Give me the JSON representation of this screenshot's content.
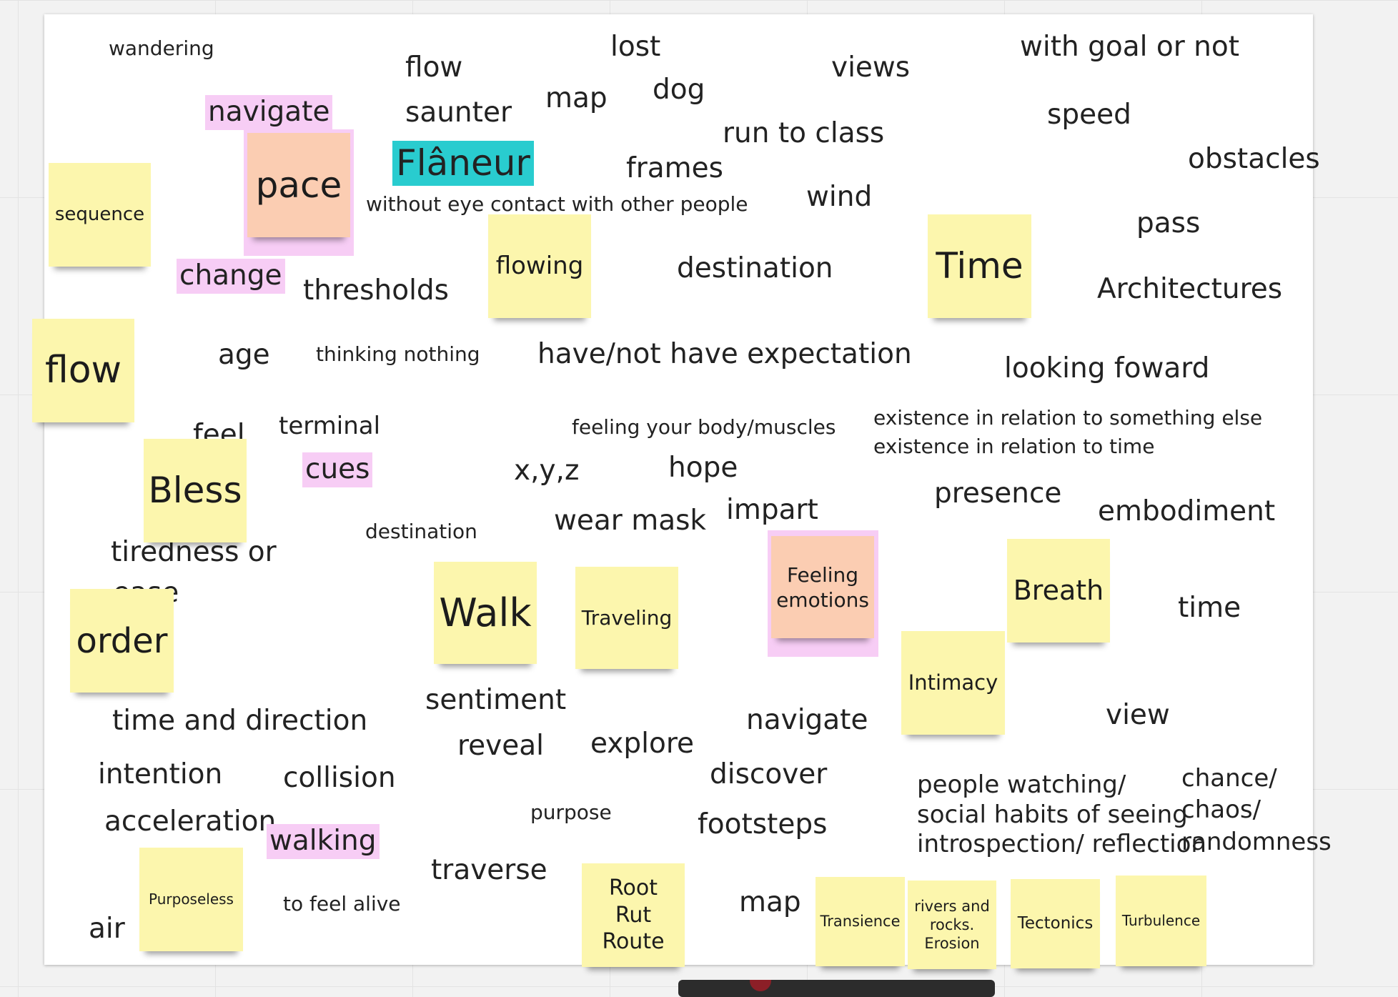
{
  "canvas": {
    "background_color": "#f2f2f2",
    "frame_color": "#ffffff",
    "sticky_yellow": "#fcf6ad",
    "sticky_salmon": "#fbcdb2",
    "highlight_pink": "#f7cdf5",
    "highlight_teal": "#29cccf"
  },
  "words": {
    "wandering": "wandering",
    "flow_top": "flow",
    "lost": "lost",
    "views": "views",
    "with_goal": "with goal or not",
    "navigate_pink": "navigate",
    "saunter": "saunter",
    "map_top": "map",
    "dog": "dog",
    "speed": "speed",
    "run_to_class": "run to class",
    "flaneur": "Flâneur",
    "frames": "frames",
    "obstacles": "obstacles",
    "without_eye_contact": "without eye contact with other people",
    "wind": "wind",
    "pass": "pass",
    "change": "change",
    "thresholds": "thresholds",
    "destination_mid": "destination",
    "architectures": "Architectures",
    "age": "age",
    "thinking_nothing": "thinking nothing",
    "expectation": "have/not have expectation",
    "looking_foward": "looking foward",
    "feel": "feel",
    "terminal": "terminal",
    "feeling_body": "feeling your body/muscles",
    "existence_something": "existence in relation to something else",
    "existence_time": "existence in relation to time",
    "cues": "cues",
    "xyz": "x,y,z",
    "hope": "hope",
    "presence": "presence",
    "destination_small": "destination",
    "wear_mask": "wear mask",
    "impart": "impart",
    "embodiment": "embodiment",
    "tiredness": "tiredness or",
    "ease": "ease",
    "time_lower": "time",
    "sentiment": "sentiment",
    "time_and_direction": "time and direction",
    "navigate_lower": "navigate",
    "view": "view",
    "reveal": "reveal",
    "explore": "explore",
    "intention": "intention",
    "collision": "collision",
    "discover": "discover",
    "people_watching": "people watching/",
    "social_habits": "social habits of seeing",
    "introspection": "introspection/ reflection",
    "chance": "chance/",
    "chaos": "chaos/",
    "randomness": "randomness",
    "purpose": "purpose",
    "acceleration": "acceleration",
    "footsteps": "footsteps",
    "walking": "walking",
    "traverse": "traverse",
    "to_feel_alive": "to feel alive",
    "map_bottom": "map",
    "air": "air"
  },
  "notes": {
    "sequence": "sequence",
    "pace": "pace",
    "flowing": "flowing",
    "time": "Time",
    "flow": "flow",
    "bless": "Bless",
    "order": "order",
    "walk": "Walk",
    "traveling": "Traveling",
    "feeling_emotions_1": "Feeling",
    "feeling_emotions_2": "emotions",
    "breath": "Breath",
    "intimacy": "Intimacy",
    "purposeless": "Purposeless",
    "root_1": "Root",
    "root_2": "Rut",
    "root_3": "Route",
    "transience": "Transience",
    "rivers_1": "rivers and",
    "rivers_2": "rocks.",
    "rivers_3": "Erosion",
    "tectonics": "Tectonics",
    "turbulence": "Turbulence"
  }
}
